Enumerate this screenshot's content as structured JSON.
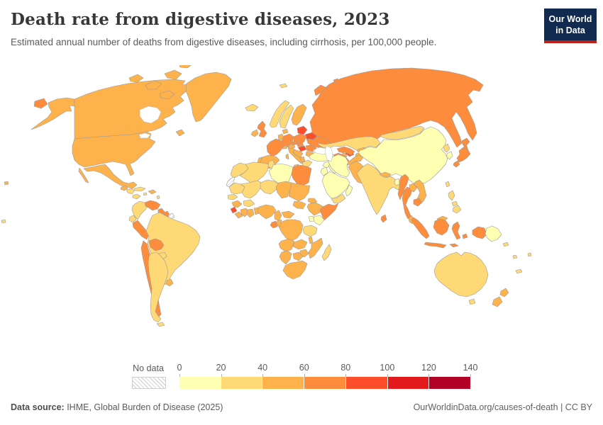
{
  "header": {
    "title": "Death rate from digestive diseases, 2023",
    "subtitle": "Estimated annual number of deaths from digestive diseases, including cirrhosis, per 100,000 people.",
    "logo": {
      "line1": "Our World",
      "line2": "in Data",
      "bg_color": "#102a50",
      "strip_color": "#bc2019"
    }
  },
  "legend": {
    "no_data_label": "No data"
  },
  "footer": {
    "source_label": "Data source:",
    "source_text": " IHME, Global Burden of Disease (2025)",
    "link_text": "OurWorldinData.org/causes-of-death | CC BY"
  },
  "chart_data": {
    "type": "choropleth",
    "title": "Death rate from digestive diseases, 2023",
    "unit": "deaths per 100,000 people",
    "year": 2023,
    "legend_position": "bottom",
    "color_scale": {
      "range": [
        0,
        140
      ],
      "thresholds": [
        20,
        40,
        60,
        80,
        100,
        120
      ],
      "tick_labels": [
        "0",
        "20",
        "40",
        "60",
        "80",
        "100",
        "120",
        "140"
      ],
      "colors": [
        "#ffffb2",
        "#fed976",
        "#feb24c",
        "#fd8d3c",
        "#fc4e2a",
        "#e31a1c",
        "#b10026"
      ],
      "no_data": "hatched"
    },
    "countries": {
      "Russia": 78,
      "Canada": 50,
      "United States": 50,
      "Greenland": 50,
      "Mexico": 50,
      "Guatemala": 55,
      "Honduras": 30,
      "Panama": 30,
      "Cuba": 30,
      "Jamaica": 30,
      "Haiti": 45,
      "Lesser Antilles": 30,
      "Hawaii": 50,
      "French Polynesia": 30,
      "Colombia": 30,
      "Venezuela": 65,
      "Guyana": 65,
      "Suriname": 65,
      "French Guiana": null,
      "Ecuador": 30,
      "Peru": 65,
      "Brazil": 30,
      "Bolivia": 65,
      "Paraguay": 30,
      "Chile": 65,
      "Argentina": 30,
      "Uruguay": 55,
      "Iceland": 30,
      "Svalbard": 30,
      "United Kingdom": 65,
      "Ireland": 55,
      "Norway": 30,
      "Sweden": 30,
      "Finland": 55,
      "Denmark": 55,
      "Baltic states": 85,
      "Belarus": 85,
      "Netherlands": 45,
      "Germany": 70,
      "Poland": 70,
      "France": 65,
      "Spain": 45,
      "Portugal": 55,
      "Italy": 45,
      "Switzerland": 45,
      "Austria": 55,
      "Czechia": 70,
      "Slovakia": 75,
      "Hungary": 90,
      "Romania": 75,
      "Moldova": 110,
      "Ukraine": 70,
      "Serbia": 55,
      "Albania": 45,
      "Greece": 35,
      "Bulgaria": 55,
      "Kazakhstan": 35,
      "Mongolia": 35,
      "China": 10,
      "North Korea": 30,
      "South Korea": 15,
      "Japan": 60,
      "Taiwan": 30,
      "India": 30,
      "Sri Lanka": 65,
      "Pakistan": 45,
      "Afghanistan": 45,
      "Nepal": 55,
      "Bangladesh": 15,
      "Myanmar": 70,
      "Thailand": 65,
      "Laos": 45,
      "Vietnam": 45,
      "Cambodia": 65,
      "Malaysia": 45,
      "Indonesia": 70,
      "Philippines": 25,
      "Papua New Guinea": 12,
      "Turkey": 12,
      "Syria": 15,
      "Jordan": 12,
      "Iraq": 15,
      "Iran": 15,
      "Saudi Arabia": 10,
      "Yemen": 20,
      "Oman": 12,
      "Georgia": 55,
      "Azerbaijan": 85,
      "Armenia": 50,
      "Turkmenistan": 75,
      "Uzbekistan": 70,
      "Kyrgyzstan": 55,
      "Tajikistan": 45,
      "Morocco": 30,
      "Western Sahara": null,
      "Algeria": 30,
      "Tunisia": 30,
      "Libya": 12,
      "Egypt": 70,
      "Mauritania": 25,
      "Mali": 30,
      "Niger": 30,
      "Chad": 45,
      "Sudan": 45,
      "Senegal": 30,
      "Guinea": 45,
      "Sierra Leone": 85,
      "Liberia": 45,
      "Cote d'Ivoire": 45,
      "Ghana": 45,
      "Benin": 50,
      "Burkina Faso": 30,
      "Nigeria": 45,
      "Cameroon": 45,
      "Central African Republic": 50,
      "South Sudan": 45,
      "Eritrea": 45,
      "Ethiopia": 45,
      "Somalia": 65,
      "Kenya": 15,
      "Uganda": 15,
      "Democratic Republic of Congo": 45,
      "Congo": 50,
      "Gabon": 60,
      "Tanzania": 30,
      "Angola": 45,
      "Zambia": 45,
      "Malawi": 45,
      "Mozambique": 45,
      "Zimbabwe": 45,
      "Botswana": 45,
      "Namibia": 45,
      "South Africa": 45,
      "Madagascar": 30,
      "Australia": 25,
      "New Zealand": 45,
      "Fiji": 30,
      "New Caledonia": 30,
      "Solomon Islands": 30,
      "Vanuatu": 30
    }
  }
}
